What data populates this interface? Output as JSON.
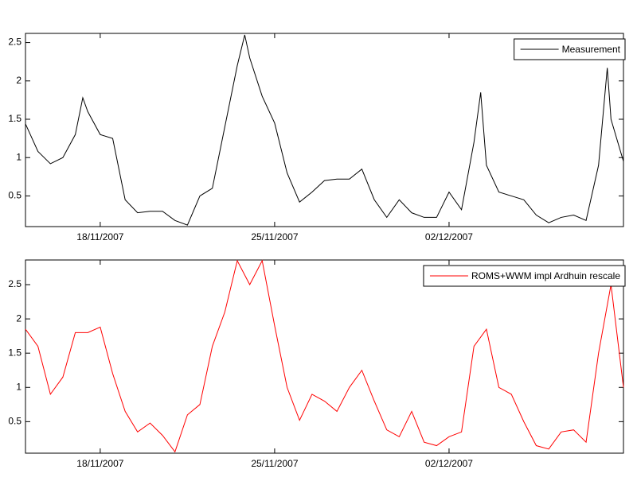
{
  "chart_data": [
    {
      "type": "line",
      "xlim": [
        733361,
        733385
      ],
      "ylim": [
        0.1,
        2.62
      ],
      "xticks": [
        {
          "value": 733364,
          "label": "18/11/2007"
        },
        {
          "value": 733371,
          "label": "25/11/2007"
        },
        {
          "value": 733378,
          "label": "02/12/2007"
        }
      ],
      "yticks": [
        0.5,
        1,
        1.5,
        2,
        2.5
      ],
      "legend": "upper right",
      "x": [
        733361,
        733361.5,
        733362,
        733362.5,
        733363,
        733363.3,
        733363.5,
        733364,
        733364.5,
        733365,
        733365.5,
        733366,
        733366.5,
        733367,
        733367.5,
        733368,
        733368.5,
        733369,
        733369.5,
        733369.8,
        733370,
        733370.5,
        733371,
        733371.5,
        733372,
        733372.5,
        733373,
        733373.5,
        733374,
        733374.5,
        733375,
        733375.5,
        733376,
        733376.5,
        733377,
        733377.5,
        733378,
        733378.5,
        733379,
        733379.27,
        733379.5,
        733380,
        733380.5,
        733381,
        733381.5,
        733382,
        733382.5,
        733383,
        733383.5,
        733384,
        733384.35,
        733384.5,
        733385
      ],
      "series": [
        {
          "name": "Measurement",
          "color": "#000000",
          "values": [
            1.44,
            1.08,
            0.92,
            1.0,
            1.3,
            1.78,
            1.6,
            1.3,
            1.25,
            0.45,
            0.28,
            0.3,
            0.3,
            0.18,
            0.12,
            0.5,
            0.6,
            1.4,
            2.2,
            2.6,
            2.3,
            1.8,
            1.45,
            0.8,
            0.42,
            0.55,
            0.7,
            0.72,
            0.72,
            0.85,
            0.45,
            0.22,
            0.45,
            0.28,
            0.22,
            0.22,
            0.55,
            0.32,
            1.2,
            1.85,
            0.9,
            0.55,
            0.5,
            0.45,
            0.25,
            0.15,
            0.22,
            0.25,
            0.18,
            0.9,
            2.17,
            1.5,
            0.95
          ]
        }
      ]
    },
    {
      "type": "line",
      "xlim": [
        733361,
        733385
      ],
      "ylim": [
        0.04,
        2.86
      ],
      "xticks": [
        {
          "value": 733364,
          "label": "18/11/2007"
        },
        {
          "value": 733371,
          "label": "25/11/2007"
        },
        {
          "value": 733378,
          "label": "02/12/2007"
        }
      ],
      "yticks": [
        0.5,
        1,
        1.5,
        2,
        2.5
      ],
      "legend": "upper right",
      "x": [
        733361,
        733361.5,
        733362,
        733362.5,
        733363,
        733363.5,
        733364,
        733364.5,
        733365,
        733365.5,
        733366,
        733366.5,
        733367,
        733367.5,
        733368,
        733368.5,
        733369,
        733369.5,
        733370,
        733370.5,
        733371,
        733371.5,
        733372,
        733372.5,
        733373,
        733373.5,
        733374,
        733374.5,
        733375,
        733375.5,
        733376,
        733376.5,
        733377,
        733377.5,
        733378,
        733378.5,
        733379,
        733379.5,
        733380,
        733380.5,
        733381,
        733381.5,
        733382,
        733382.5,
        733383,
        733383.5,
        733384,
        733384.5,
        733385
      ],
      "series": [
        {
          "name": "ROMS+WWM impl Ardhuin rescale",
          "color": "#ff0000",
          "values": [
            1.85,
            1.6,
            0.9,
            1.15,
            1.8,
            1.8,
            1.88,
            1.2,
            0.65,
            0.35,
            0.48,
            0.3,
            0.06,
            0.6,
            0.75,
            1.6,
            2.1,
            2.85,
            2.5,
            2.85,
            1.9,
            1.0,
            0.52,
            0.9,
            0.8,
            0.65,
            1.0,
            1.25,
            0.8,
            0.38,
            0.28,
            0.65,
            0.2,
            0.15,
            0.28,
            0.35,
            1.6,
            1.85,
            1.0,
            0.9,
            0.5,
            0.15,
            0.1,
            0.35,
            0.38,
            0.2,
            1.5,
            2.5,
            1.0
          ]
        }
      ]
    }
  ]
}
